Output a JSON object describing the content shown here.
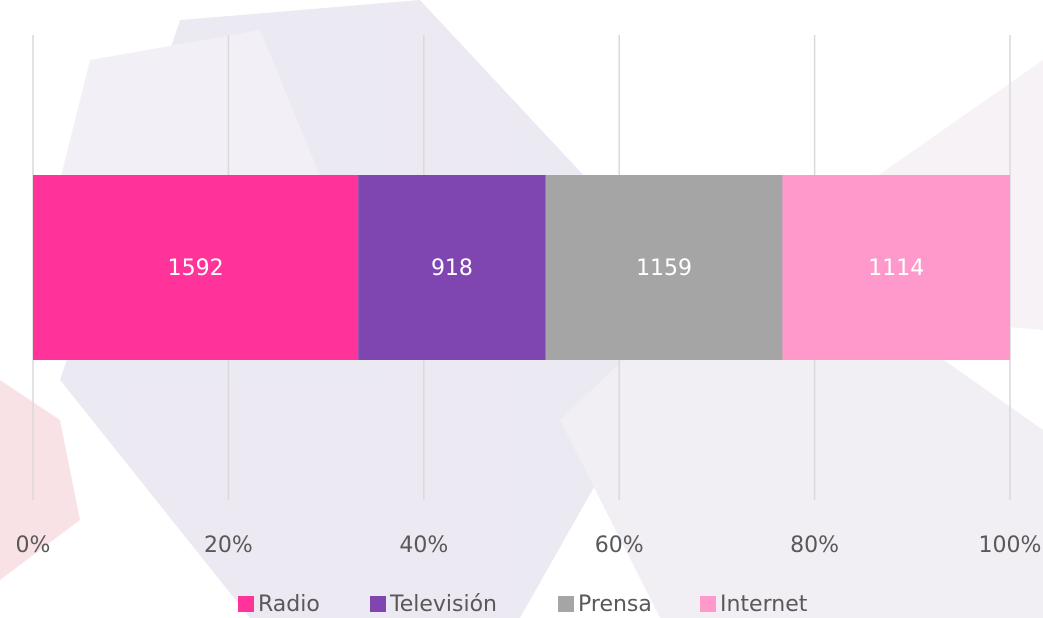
{
  "chart_data": {
    "type": "bar",
    "orientation": "horizontal",
    "stacking": "percent",
    "series": [
      {
        "name": "Radio",
        "color": "#ff3399",
        "values": [
          1592
        ]
      },
      {
        "name": "Televisión",
        "color": "#7f46b1",
        "values": [
          918
        ]
      },
      {
        "name": "Prensa",
        "color": "#a5a5a5",
        "values": [
          1159
        ]
      },
      {
        "name": "Internet",
        "color": "#ff99cc",
        "values": [
          1114
        ]
      }
    ],
    "xlim": [
      0,
      100
    ],
    "xticks": [
      {
        "value": 0,
        "label": "0%"
      },
      {
        "value": 20,
        "label": "20%"
      },
      {
        "value": 40,
        "label": "40%"
      },
      {
        "value": 60,
        "label": "60%"
      },
      {
        "value": 80,
        "label": "80%"
      },
      {
        "value": 100,
        "label": "100%"
      }
    ],
    "grid": true,
    "legend": "bottom"
  }
}
